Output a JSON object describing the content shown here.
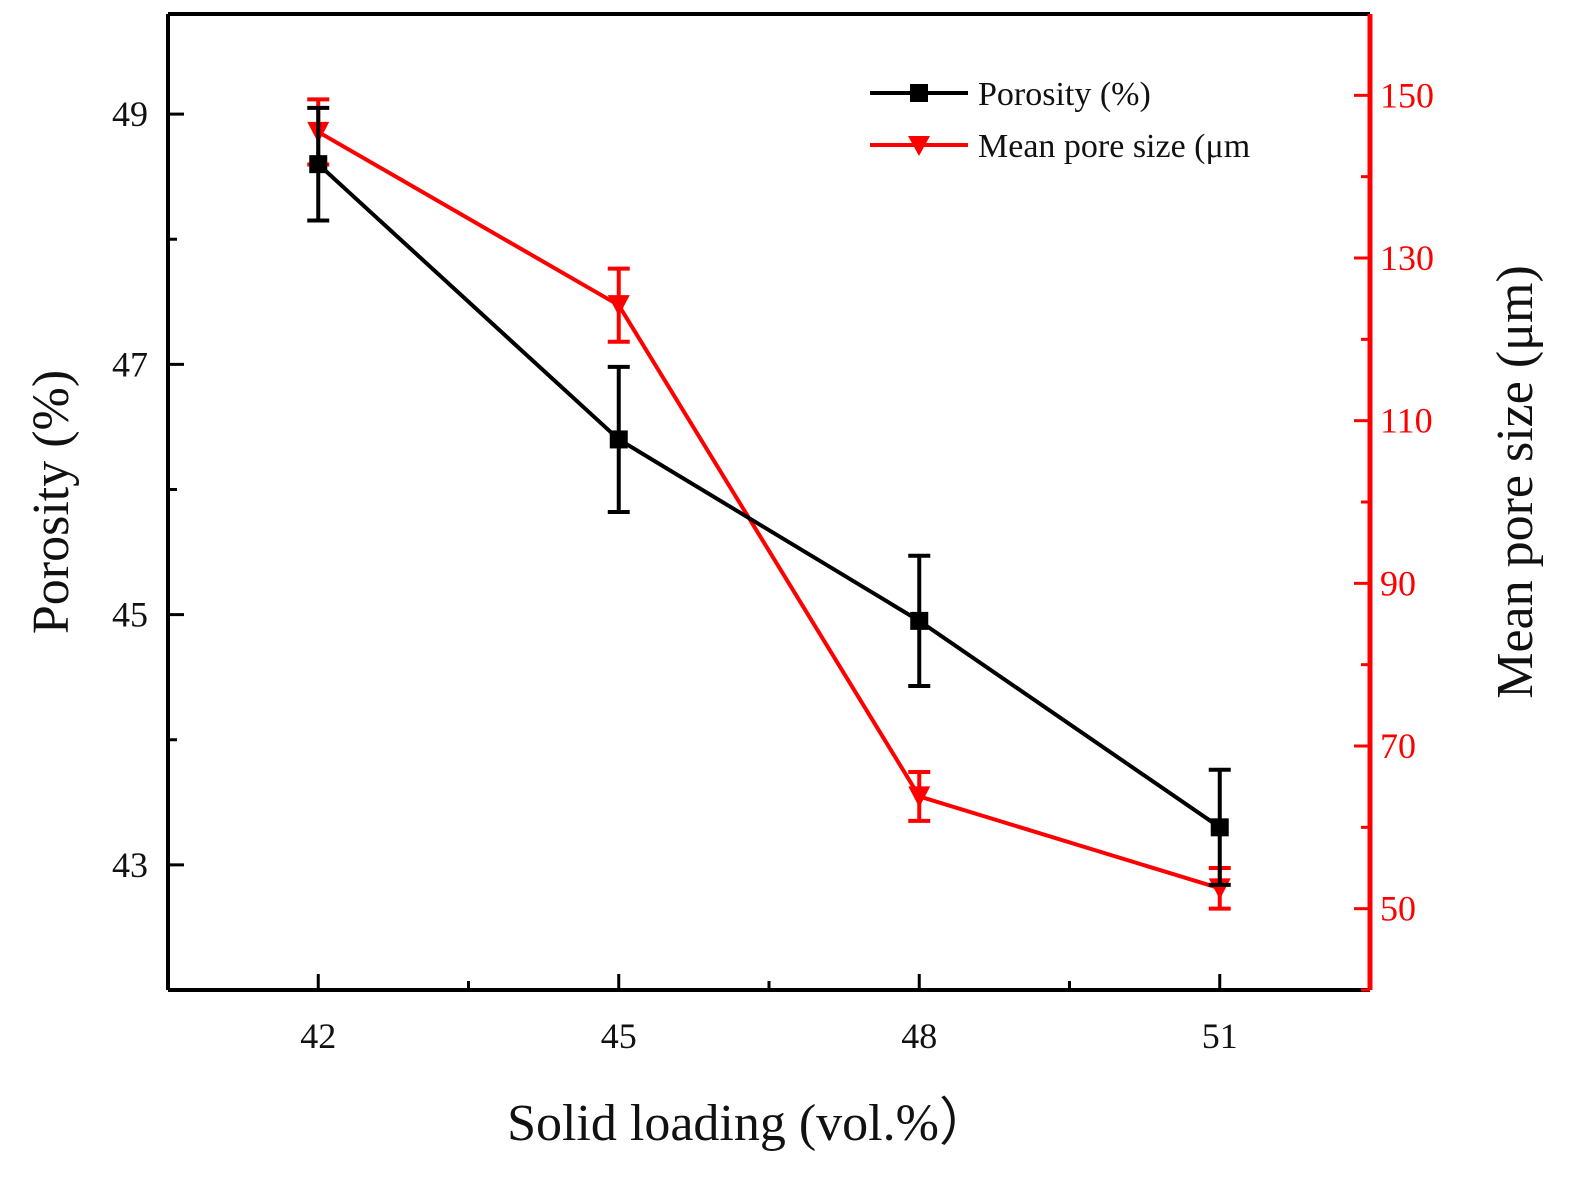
{
  "chart_data": {
    "type": "line",
    "title": "",
    "xlabel": "Solid loading (vol.%）",
    "ylabel_left": "Porosity (%)",
    "ylabel_right": "Mean pore size (μm)",
    "categories": [
      42,
      45,
      48,
      51
    ],
    "xlim": [
      40.5,
      52.5
    ],
    "ylim_left": [
      42,
      49.8
    ],
    "ylim_right": [
      40,
      160
    ],
    "yticks_left": [
      43,
      45,
      47,
      49
    ],
    "yticks_right": [
      50,
      70,
      90,
      110,
      130,
      150
    ],
    "series": [
      {
        "name": "Porosity (%)",
        "axis": "left",
        "marker": "square",
        "color": "#000000",
        "x": [
          42,
          45,
          48,
          51
        ],
        "values": [
          48.6,
          46.4,
          44.95,
          43.3
        ],
        "errors": [
          0.45,
          0.58,
          0.52,
          0.46
        ]
      },
      {
        "name": "Mean pore size (μm",
        "axis": "right",
        "marker": "triangle-down",
        "color": "#ff0000",
        "x": [
          42,
          45,
          48,
          51
        ],
        "values": [
          145.5,
          124.2,
          63.8,
          52.5
        ],
        "errors": [
          4.0,
          4.5,
          3.0,
          2.5
        ]
      }
    ],
    "legend_position": "top-right",
    "grid": false
  },
  "colors": {
    "left_axis": "#000000",
    "right_axis": "#ff0000",
    "porosity": "#000000",
    "pore_size": "#ff0000"
  }
}
